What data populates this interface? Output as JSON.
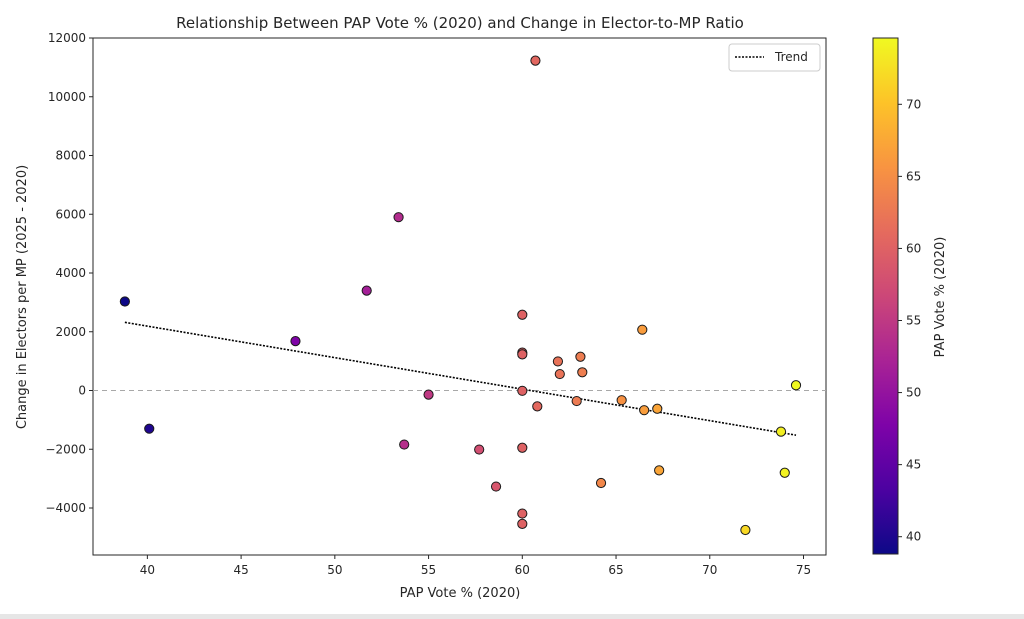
{
  "chart_data": {
    "type": "scatter",
    "title": "Relationship Between PAP Vote % (2020) and Change in Elector-to-MP Ratio",
    "xlabel": "PAP Vote % (2020)",
    "ylabel": "Change in Electors per MP (2025 - 2020)",
    "colorbar_label": "PAP Vote % (2020)",
    "xlim": [
      37.1,
      76.2
    ],
    "ylim": [
      -5600,
      12000
    ],
    "x_ticks": [
      "40",
      "45",
      "50",
      "55",
      "60",
      "65",
      "70",
      "75"
    ],
    "y_ticks": [
      "−4000",
      "−2000",
      "0",
      "2000",
      "4000",
      "6000",
      "8000",
      "10000",
      "12000"
    ],
    "colorbar_range": [
      38.8,
      74.6
    ],
    "colorbar_ticks": [
      "40",
      "45",
      "50",
      "55",
      "60",
      "65",
      "70"
    ],
    "colormap": "plasma",
    "legend": {
      "position": "top-right",
      "entries": [
        "Trend"
      ]
    },
    "reference_line_y": 0,
    "grid": false,
    "trend": {
      "x": [
        38.8,
        74.6
      ],
      "y": [
        2320,
        -1520
      ]
    },
    "points": [
      {
        "x": 38.8,
        "y": 3030
      },
      {
        "x": 40.1,
        "y": -1300
      },
      {
        "x": 47.9,
        "y": 1680
      },
      {
        "x": 51.7,
        "y": 3400
      },
      {
        "x": 53.4,
        "y": 5900
      },
      {
        "x": 53.7,
        "y": -1840
      },
      {
        "x": 55.0,
        "y": -140
      },
      {
        "x": 57.7,
        "y": -2010
      },
      {
        "x": 58.6,
        "y": -3270
      },
      {
        "x": 60.0,
        "y": 2580
      },
      {
        "x": 60.0,
        "y": 1290
      },
      {
        "x": 60.0,
        "y": 1230
      },
      {
        "x": 60.0,
        "y": -10
      },
      {
        "x": 60.0,
        "y": -1950
      },
      {
        "x": 60.0,
        "y": -4190
      },
      {
        "x": 60.0,
        "y": -4540
      },
      {
        "x": 60.7,
        "y": 11230
      },
      {
        "x": 60.8,
        "y": -540
      },
      {
        "x": 61.9,
        "y": 990
      },
      {
        "x": 62.0,
        "y": 560
      },
      {
        "x": 62.9,
        "y": -360
      },
      {
        "x": 63.1,
        "y": 1150
      },
      {
        "x": 63.2,
        "y": 620
      },
      {
        "x": 64.2,
        "y": -3150
      },
      {
        "x": 65.3,
        "y": -330
      },
      {
        "x": 66.4,
        "y": 2070
      },
      {
        "x": 66.5,
        "y": -670
      },
      {
        "x": 67.2,
        "y": -620
      },
      {
        "x": 67.3,
        "y": -2720
      },
      {
        "x": 71.9,
        "y": -4750
      },
      {
        "x": 73.8,
        "y": -1400
      },
      {
        "x": 74.0,
        "y": -2800
      },
      {
        "x": 74.6,
        "y": 180
      }
    ]
  }
}
